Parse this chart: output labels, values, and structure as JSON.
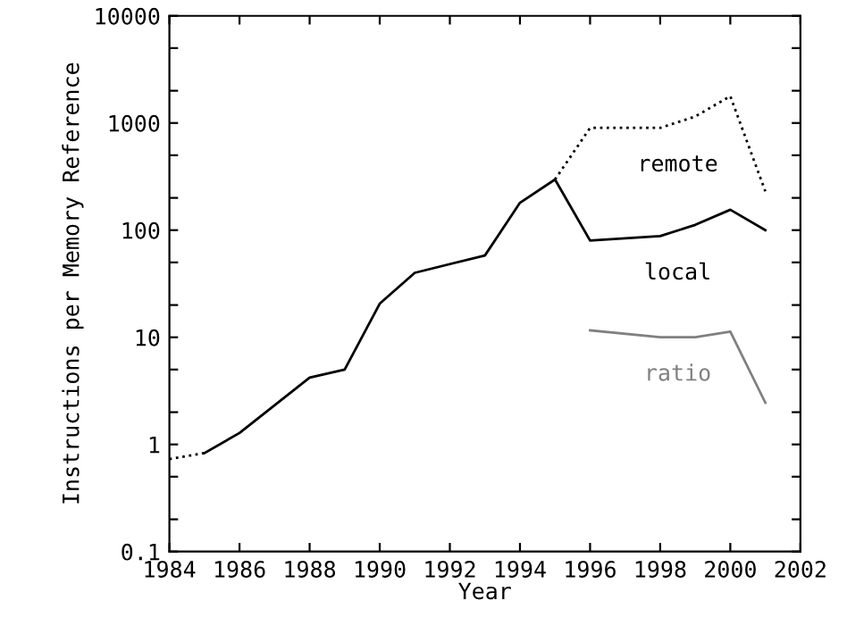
{
  "chart_data": {
    "type": "line",
    "xlabel": "Year",
    "ylabel": "Instructions per Memory Reference",
    "log": "y",
    "grid": false,
    "legend": false,
    "marker": "none",
    "xlim": [
      1984,
      2002
    ],
    "xticks": [
      1984,
      1986,
      1988,
      1990,
      1992,
      1994,
      1996,
      1998,
      2000,
      2002
    ],
    "ylim": [
      0.1,
      10000
    ],
    "yticks": [
      0.1,
      {
        "value": 0.2,
        "label": null
      },
      {
        "value": 0.5,
        "label": null
      },
      1,
      {
        "value": 2,
        "label": null
      },
      {
        "value": 5,
        "label": null
      },
      10,
      {
        "value": 20,
        "label": null
      },
      {
        "value": 50,
        "label": null
      },
      100,
      {
        "value": 200,
        "label": null
      },
      {
        "value": 500,
        "label": null
      },
      1000,
      {
        "value": 2000,
        "label": null
      },
      {
        "value": 5000,
        "label": null
      },
      10000
    ],
    "series": [
      {
        "name": "remote",
        "color": "#000000",
        "line_style": "dotted",
        "x": [
          1984,
          1985,
          1990,
          1995,
          1996,
          1998,
          1999,
          2000,
          2001
        ],
        "values": [
          0.73,
          0.83,
          null,
          297,
          900,
          900,
          1150,
          1780,
          230
        ]
      },
      {
        "name": "local",
        "color": "#000000",
        "line_style": "solid",
        "x": [
          1985,
          1986,
          1988,
          1989,
          1990,
          1991,
          1993,
          1994,
          1995,
          1996,
          1998,
          1999,
          2000,
          2001
        ],
        "values": [
          0.83,
          1.28,
          4.2,
          5,
          20.6,
          40,
          58,
          180,
          297,
          80,
          88,
          112,
          155,
          100
        ]
      },
      {
        "name": "ratio",
        "color": "#808080",
        "line_style": "solid",
        "x": [
          1996,
          1998,
          1999,
          2000,
          2001
        ],
        "values": [
          11.6,
          10,
          10,
          11.3,
          2.45
        ]
      }
    ]
  }
}
